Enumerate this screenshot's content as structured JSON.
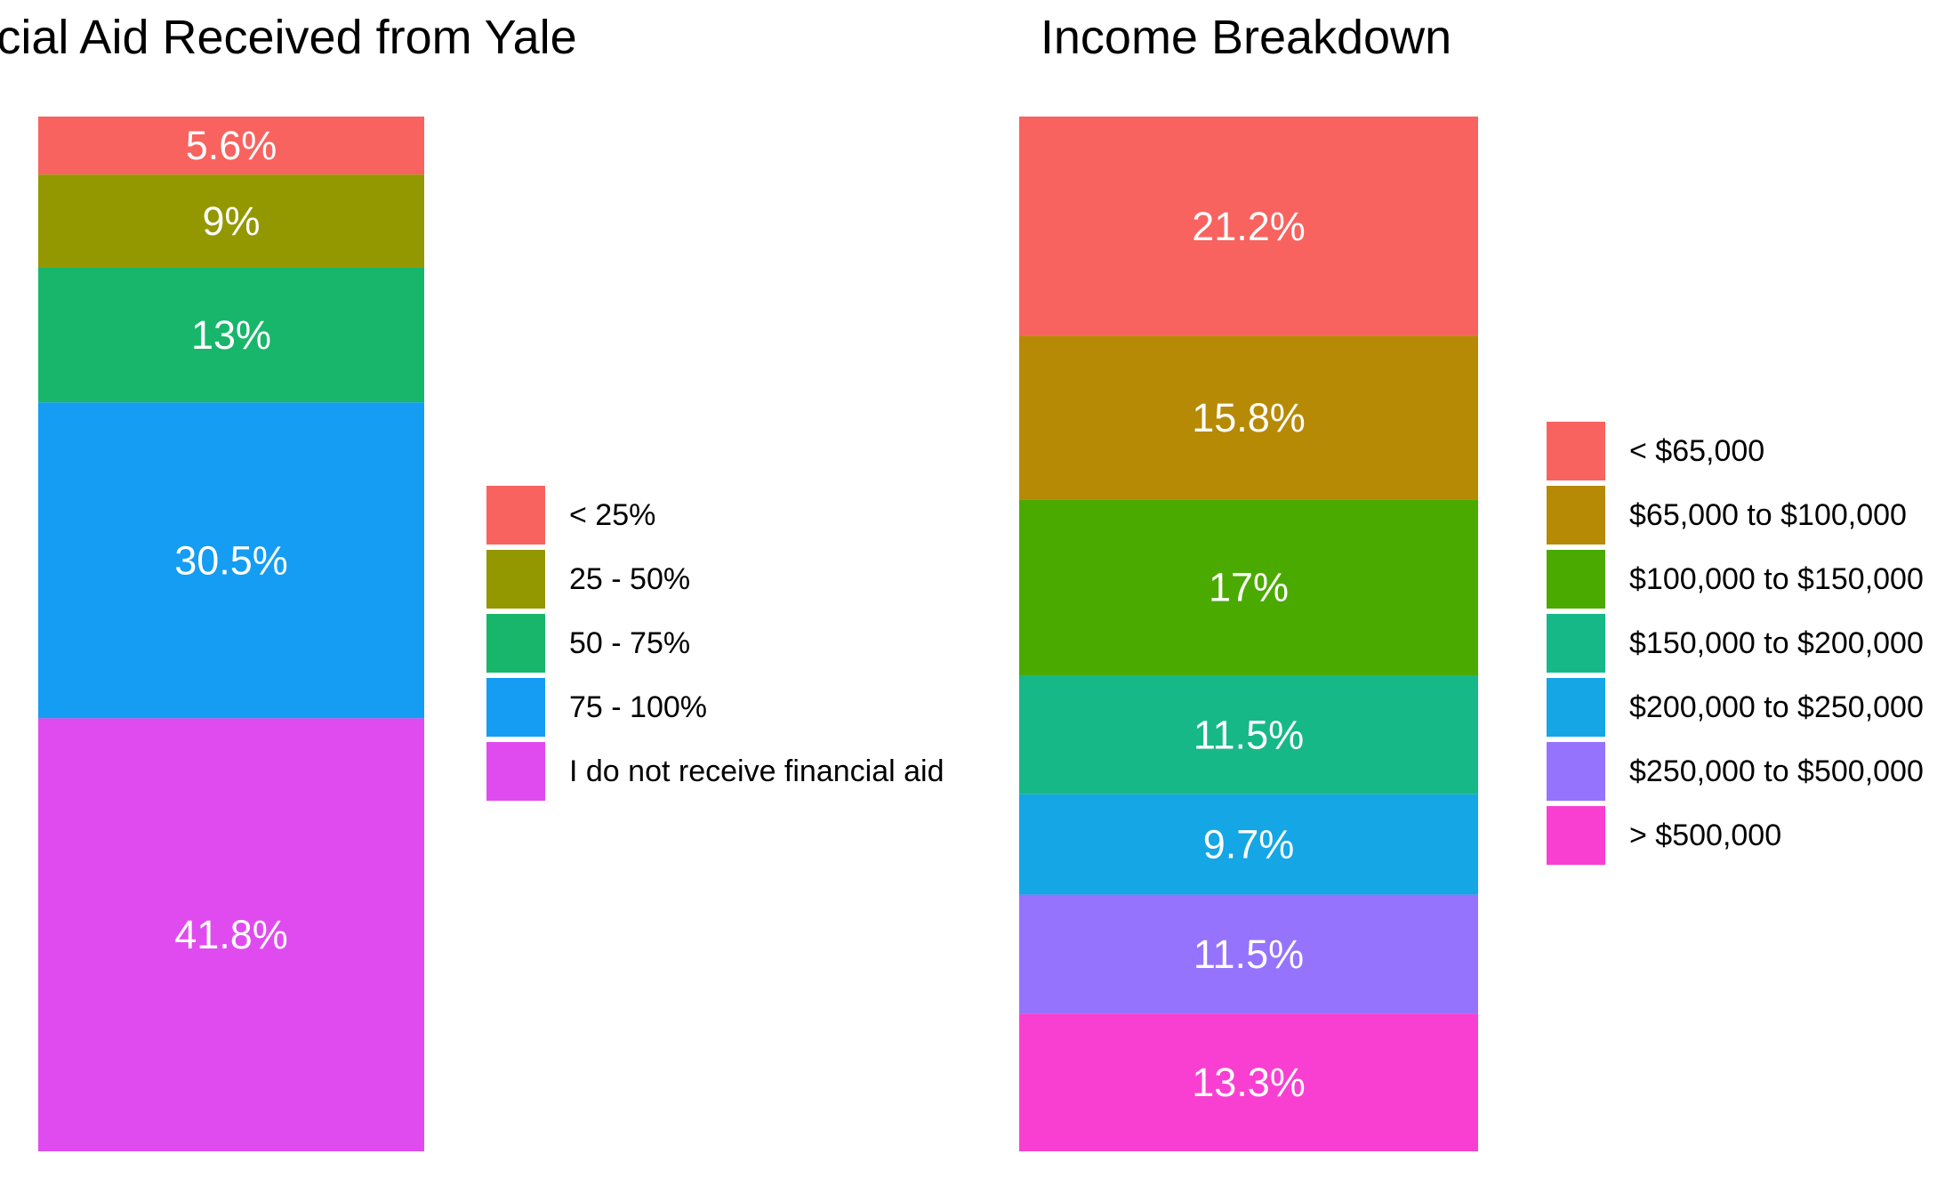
{
  "chart_data": [
    {
      "type": "bar",
      "stacked": true,
      "title": "Financial Aid Received from Yale",
      "xlabel": "",
      "ylabel": "",
      "ylim": [
        0,
        100
      ],
      "grid": false,
      "legend_position": "right",
      "series": [
        {
          "name": "< 25%",
          "value": 5.6,
          "label": "5.6%",
          "color": "#F8635F"
        },
        {
          "name": "25 - 50%",
          "value": 9,
          "label": "9%",
          "color": "#939700"
        },
        {
          "name": "50 - 75%",
          "value": 13,
          "label": "13%",
          "color": "#18B66A"
        },
        {
          "name": "75 - 100%",
          "value": 30.5,
          "label": "30.5%",
          "color": "#149DF2"
        },
        {
          "name": "I do not receive financial aid",
          "value": 41.8,
          "label": "41.8%",
          "color": "#E04BF0"
        }
      ]
    },
    {
      "type": "bar",
      "stacked": true,
      "title": "Income Breakdown",
      "xlabel": "",
      "ylabel": "",
      "ylim": [
        0,
        100
      ],
      "grid": false,
      "legend_position": "right",
      "series": [
        {
          "name": "< $65,000",
          "value": 21.2,
          "label": "21.2%",
          "color": "#F8635F"
        },
        {
          "name": "$65,000 to $100,000",
          "value": 15.8,
          "label": "15.8%",
          "color": "#B78A05"
        },
        {
          "name": "$100,000 to $150,000",
          "value": 17,
          "label": "17%",
          "color": "#4BAA00"
        },
        {
          "name": "$150,000 to $200,000",
          "value": 11.5,
          "label": "11.5%",
          "color": "#17B887"
        },
        {
          "name": "$200,000 to $250,000",
          "value": 9.7,
          "label": "9.7%",
          "color": "#14A6E5"
        },
        {
          "name": "$250,000 to $500,000",
          "value": 11.5,
          "label": "11.5%",
          "color": "#9573FD"
        },
        {
          "name": "> $500,000",
          "value": 13.3,
          "label": "13.3%",
          "color": "#F93FD1"
        }
      ]
    }
  ]
}
